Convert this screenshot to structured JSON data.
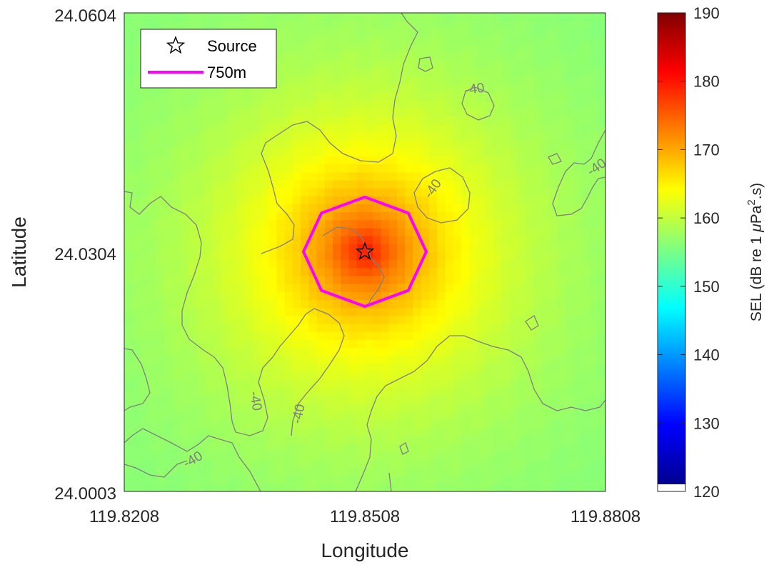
{
  "chart_data": {
    "type": "heatmap",
    "xlabel": "Longitude",
    "ylabel": "Latitude",
    "x_ticks": [
      "119.8208",
      "119.8508",
      "119.8808"
    ],
    "y_ticks": [
      "24.0003",
      "24.0304",
      "24.0604"
    ],
    "xlim": [
      119.8208,
      119.8808
    ],
    "ylim": [
      24.0003,
      24.0604
    ],
    "grid": false,
    "legend_placement": "top-left",
    "legend": [
      {
        "label": "Source",
        "marker": "star",
        "color": "#000000"
      },
      {
        "label": "750m",
        "marker": "line",
        "color": "#ff00ff"
      }
    ],
    "source": {
      "lon": 119.8508,
      "lat": 24.0304
    },
    "radius_label": "750m",
    "colorbar": {
      "label": "SEL (dB re 1 μPa².s)",
      "label_main": "SEL (dB re 1 ",
      "label_mu": "μ",
      "label_pa": "Pa",
      "label_sup": "2",
      "label_end": ".s)",
      "colormap": "jet",
      "range": [
        120,
        190
      ],
      "ticks": [
        "120",
        "130",
        "140",
        "150",
        "160",
        "170",
        "180",
        "190"
      ]
    },
    "contour_level_labels": [
      "-40",
      "-40",
      "-40",
      "-40",
      "-40",
      "-40"
    ],
    "field": {
      "peak_sel": 177,
      "edge_sel": 155,
      "corner_sel": 153
    }
  }
}
